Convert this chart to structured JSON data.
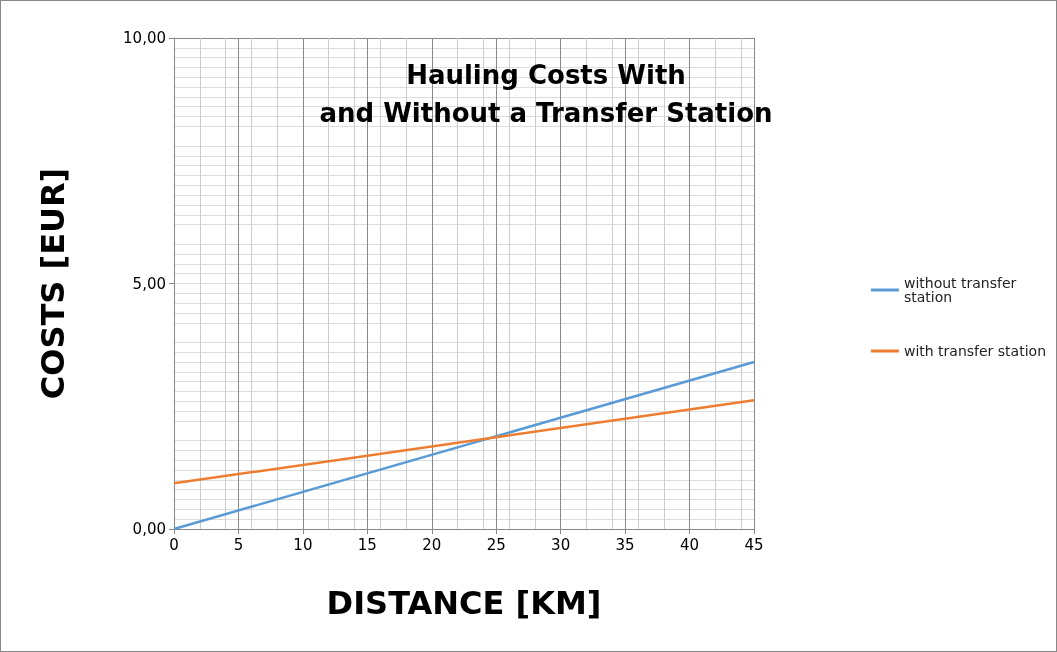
{
  "chart_data": {
    "type": "line",
    "title": "Hauling Costs With\nand Without a Transfer Station",
    "xlabel": "DISTANCE [KM]",
    "ylabel": "COSTS [EUR]",
    "x": [
      0,
      45
    ],
    "series": [
      {
        "name": "without transfer station",
        "color": "#5b9bd5",
        "values": [
          0,
          3.4
        ]
      },
      {
        "name": "with transfer station",
        "color": "#ed7d31",
        "values": [
          0.93,
          2.62
        ]
      }
    ],
    "xlim": [
      0,
      45
    ],
    "xticks": [
      0,
      5,
      10,
      15,
      20,
      25,
      30,
      35,
      40,
      45
    ],
    "ylim": [
      0,
      10
    ],
    "yticks": [
      {
        "value": 0,
        "label": "0,00"
      },
      {
        "value": 5,
        "label": "5,00"
      },
      {
        "value": 10,
        "label": "10,00"
      }
    ],
    "grid": true,
    "legend": "right",
    "marker": "none",
    "line_style": "solid"
  }
}
